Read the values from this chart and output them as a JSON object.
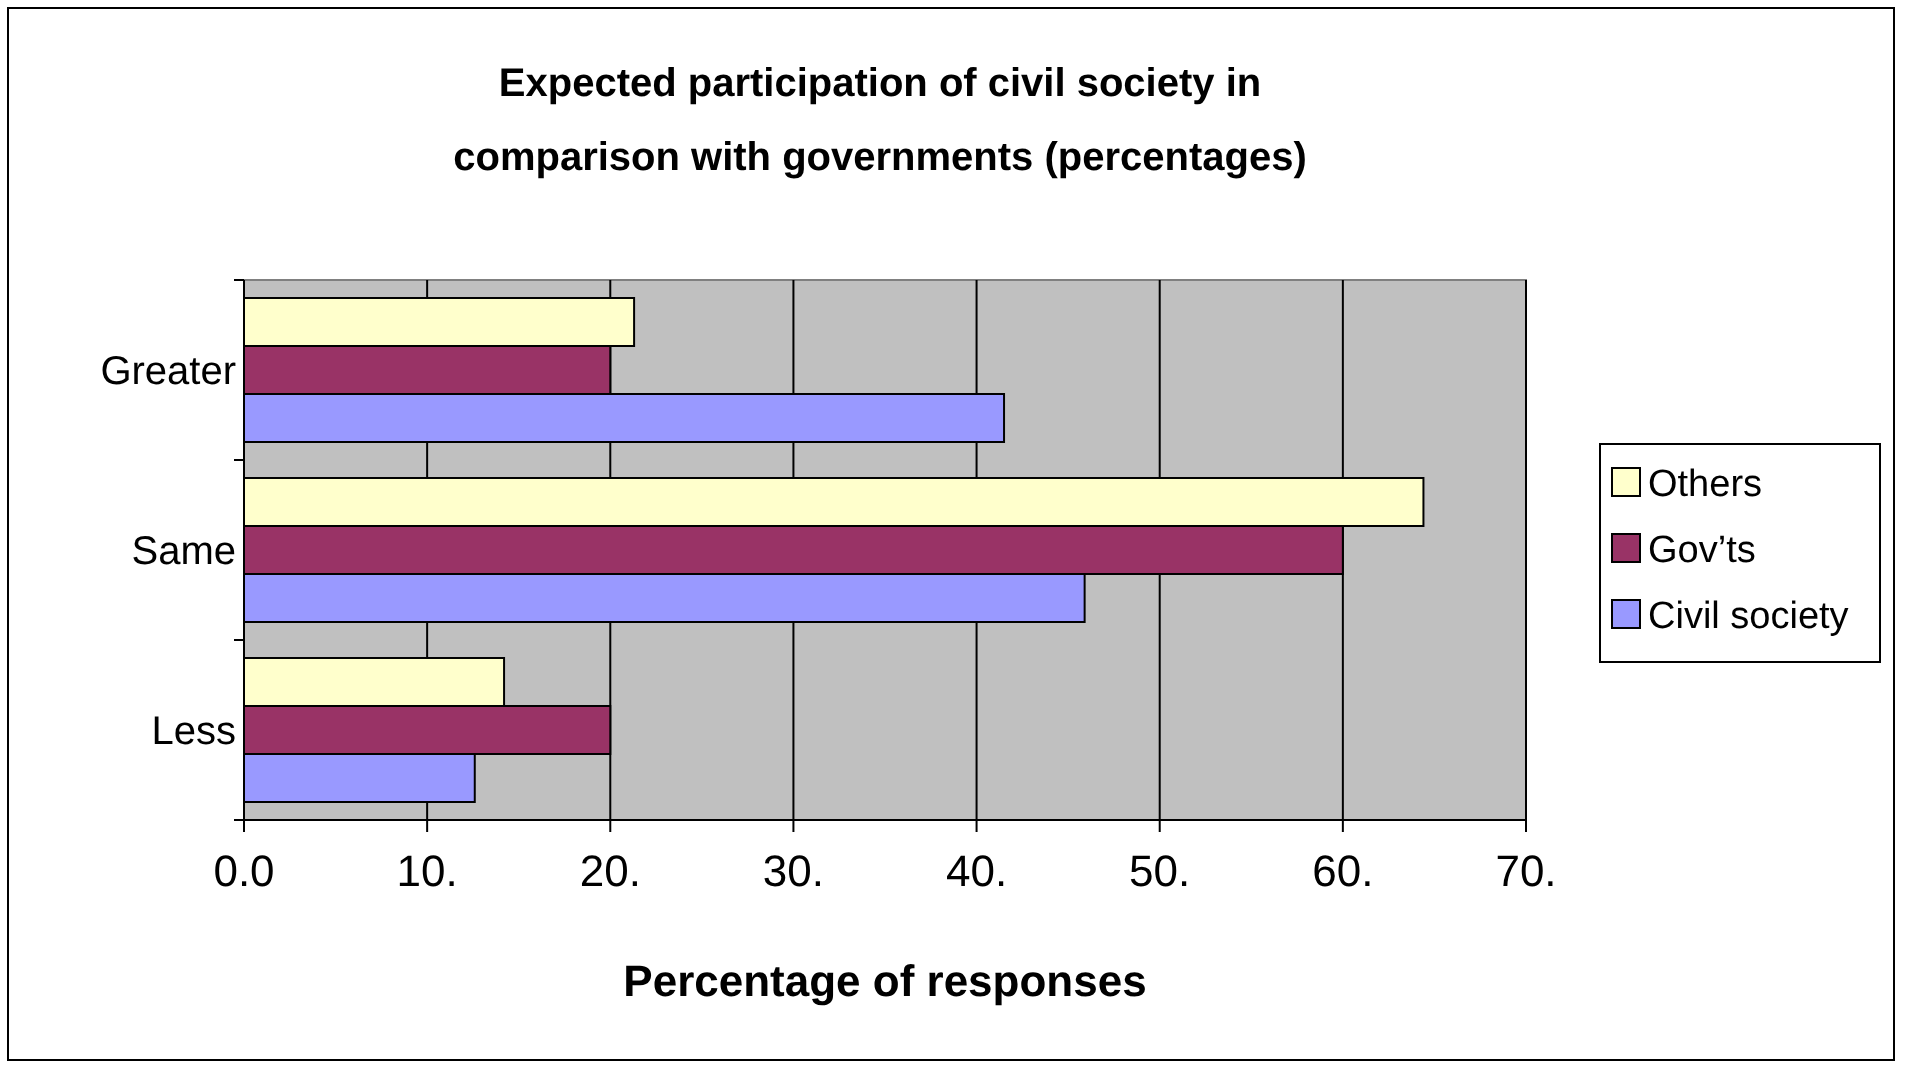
{
  "chart_data": {
    "type": "bar",
    "orientation": "horizontal",
    "title": "Expected participation of civil society in comparison with governments (percentages)",
    "xlabel": "Percentage of responses",
    "categories": [
      "Greater",
      "Same",
      "Less"
    ],
    "series": [
      {
        "name": "Civil society",
        "color": "#9999ff",
        "values": [
          41.5,
          45.9,
          12.6
        ]
      },
      {
        "name": "Gov’ts",
        "color": "#993366",
        "values": [
          20,
          60,
          20
        ]
      },
      {
        "name": "Others",
        "color": "#ffffcc",
        "values": [
          21.3,
          64.4,
          14.2
        ]
      }
    ],
    "xlim": [
      0,
      70
    ],
    "xticks": [
      {
        "value": 0,
        "label": "0.0"
      },
      {
        "value": 10,
        "label": "10."
      },
      {
        "value": 20,
        "label": "20."
      },
      {
        "value": 30,
        "label": "30."
      },
      {
        "value": 40,
        "label": "40."
      },
      {
        "value": 50,
        "label": "50."
      },
      {
        "value": 60,
        "label": "60."
      },
      {
        "value": 70,
        "label": "70."
      }
    ],
    "grid": "x",
    "legend": "right"
  }
}
